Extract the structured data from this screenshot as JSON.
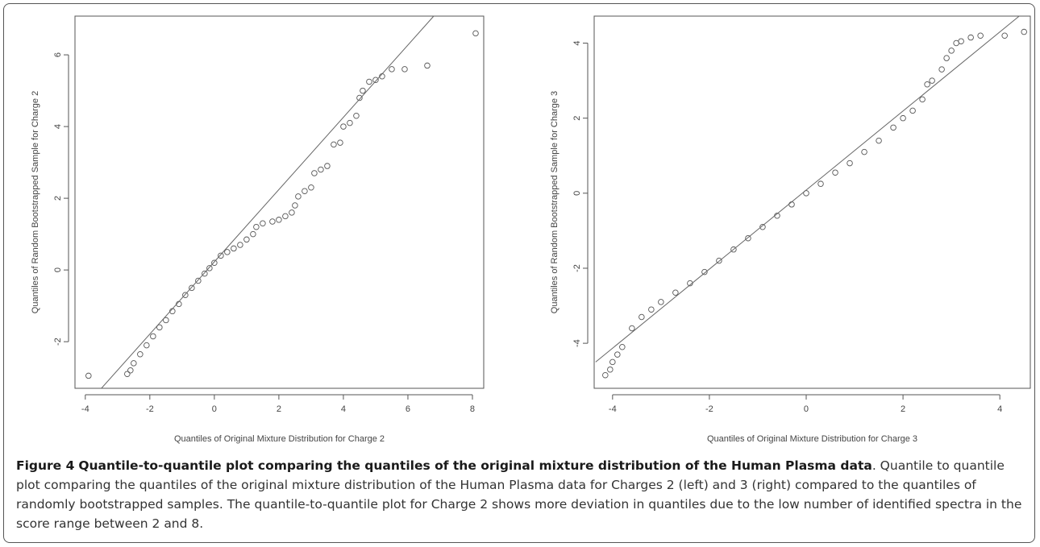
{
  "chart_data": [
    {
      "type": "scatter",
      "xlabel": "Quantiles of Original Mixture Distribution for Charge 2",
      "ylabel": "Quantiles of Random Bootstrapped Sample for Charge 2",
      "xlim": [
        -4.32,
        8.35
      ],
      "ylim": [
        -3.3,
        7.08
      ],
      "xticks": [
        -4,
        -2,
        0,
        2,
        4,
        6,
        8
      ],
      "yticks": [
        -2,
        0,
        2,
        4,
        6
      ],
      "color": "#555555",
      "x": [
        -3.9,
        -2.7,
        -2.6,
        -2.5,
        -2.3,
        -2.1,
        -1.9,
        -1.7,
        -1.5,
        -1.3,
        -1.1,
        -0.9,
        -0.7,
        -0.5,
        -0.3,
        -0.15,
        0,
        0.2,
        0.4,
        0.6,
        0.8,
        1.0,
        1.2,
        1.3,
        1.5,
        1.8,
        2.0,
        2.2,
        2.4,
        2.5,
        2.6,
        2.8,
        3.0,
        3.1,
        3.3,
        3.5,
        3.7,
        3.9,
        4.0,
        4.2,
        4.4,
        4.5,
        4.6,
        4.8,
        5.0,
        5.2,
        5.5,
        5.9,
        6.6,
        8.1
      ],
      "y": [
        -2.95,
        -2.9,
        -2.8,
        -2.6,
        -2.35,
        -2.1,
        -1.85,
        -1.6,
        -1.4,
        -1.15,
        -0.95,
        -0.7,
        -0.5,
        -0.3,
        -0.1,
        0.05,
        0.2,
        0.4,
        0.5,
        0.6,
        0.7,
        0.85,
        1.0,
        1.2,
        1.3,
        1.35,
        1.4,
        1.5,
        1.6,
        1.8,
        2.05,
        2.2,
        2.3,
        2.7,
        2.8,
        2.9,
        3.5,
        3.55,
        4.0,
        4.1,
        4.3,
        4.8,
        5.0,
        5.25,
        5.3,
        5.4,
        5.6,
        5.6,
        5.7,
        6.6
      ],
      "reference_line": {
        "x": [
          -3.5,
          6.8
        ],
        "y": [
          -3.3,
          7.08
        ]
      }
    },
    {
      "type": "scatter",
      "xlabel": "Quantiles of Original Mixture Distribution for Charge 3",
      "ylabel": "Quantiles of Random Bootstrapped Sample for Charge 3",
      "xlim": [
        -4.38,
        4.63
      ],
      "ylim": [
        -5.2,
        4.72
      ],
      "xticks": [
        -4,
        -2,
        0,
        2,
        4
      ],
      "yticks": [
        -4,
        -2,
        0,
        2,
        4
      ],
      "color": "#555555",
      "x": [
        -4.15,
        -4.05,
        -4.0,
        -3.9,
        -3.8,
        -3.6,
        -3.4,
        -3.2,
        -3.0,
        -2.7,
        -2.4,
        -2.1,
        -1.8,
        -1.5,
        -1.2,
        -0.9,
        -0.6,
        -0.3,
        0,
        0.3,
        0.6,
        0.9,
        1.2,
        1.5,
        1.8,
        2.0,
        2.2,
        2.4,
        2.5,
        2.6,
        2.8,
        2.9,
        3.0,
        3.1,
        3.2,
        3.4,
        3.6,
        4.1,
        4.5
      ],
      "y": [
        -4.85,
        -4.7,
        -4.5,
        -4.3,
        -4.1,
        -3.6,
        -3.3,
        -3.1,
        -2.9,
        -2.65,
        -2.4,
        -2.1,
        -1.8,
        -1.5,
        -1.2,
        -0.9,
        -0.6,
        -0.3,
        0,
        0.25,
        0.55,
        0.8,
        1.1,
        1.4,
        1.75,
        2.0,
        2.2,
        2.5,
        2.9,
        3.0,
        3.3,
        3.6,
        3.8,
        4.0,
        4.05,
        4.15,
        4.2,
        4.2,
        4.3
      ],
      "reference_line": {
        "x": [
          -4.35,
          4.4
        ],
        "y": [
          -4.5,
          4.72
        ]
      }
    }
  ],
  "caption": {
    "label": "Figure 4",
    "title": "Quantile-to-quantile plot comparing the quantiles of the original mixture distribution of the Human Plasma data",
    "text": ". Quantile to quantile plot comparing the quantiles of the original mixture distribution of the Human Plasma data for Charges 2 (left) and 3 (right) compared to the quantiles of randomly bootstrapped samples. The quantile-to-quantile plot for Charge 2 shows more deviation in quantiles due to the low number of identified spectra in the score range between 2 and 8."
  }
}
